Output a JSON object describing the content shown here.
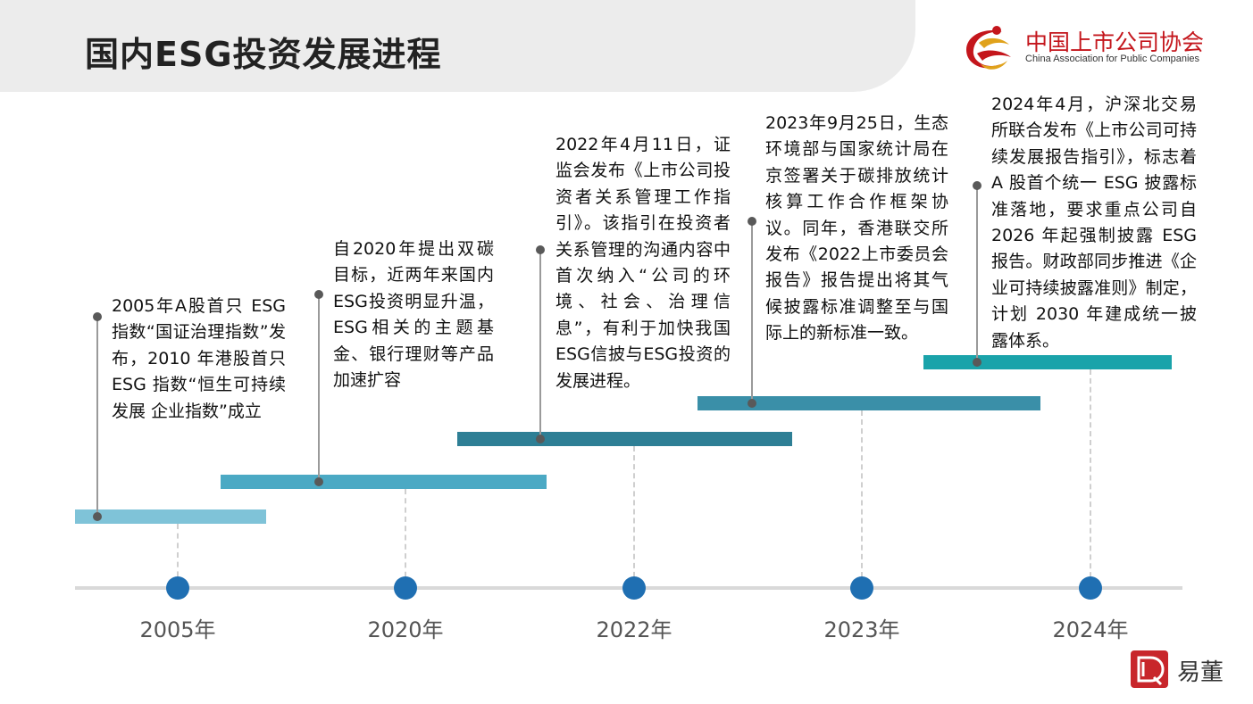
{
  "page": {
    "title": "国内ESG投资发展进程"
  },
  "logo": {
    "name_cn": "中国上市公司协会",
    "name_en": "China Association for Public Companies"
  },
  "brand": {
    "text": "易董"
  },
  "colors": {
    "axis": "#d9d9d9",
    "year_dot": "#1f6fb2",
    "bar_2005": "#7fc3d8",
    "bar_2020": "#4ba9c4",
    "bar_2022": "#2e7f95",
    "bar_2023": "#3a8fa8",
    "bar_2024": "#1aa3aa",
    "logo_red": "#c4161c"
  },
  "timeline": [
    {
      "year": "2005年",
      "text": "2005年A股首只 ESG 指数“国证治理指数”发布，2010 年港股首只 ESG 指数“恒生可持续发展 企业指数”成立"
    },
    {
      "year": "2020年",
      "text": "自2020年提出双碳目标，近两年来国内ESG投资明显升温，ESG相关的主题基金、银行理财等产品加速扩容"
    },
    {
      "year": "2022年",
      "text": "2022年4月11日，证监会发布《上市公司投资者关系管理工作指引》。该指引在投资者关系管理的沟通内容中首次纳入“公司的环境、社会、治理信息”，有利于加快我国ESG信披与ESG投资的发展进程。"
    },
    {
      "year": "2023年",
      "text": "2023年9月25日，生态环境部与国家统计局在京签署关于碳排放统计核算工作合作框架协议。同年，香港联交所发布《2022上市委员会报告》报告提出将其气候披露标准调整至与国际上的新标准一致。"
    },
    {
      "year": "2024年",
      "text": "2024年4月，沪深北交易所联合发布《上市公司可持续发展报告指引》，标志着 A 股首个统一 ESG 披露标准落地，要求重点公司自 2026 年起强制披露 ESG 报告。财政部同步推进《企业可持续披露准则》制定，计划 2030 年建成统一披露体系。"
    }
  ]
}
